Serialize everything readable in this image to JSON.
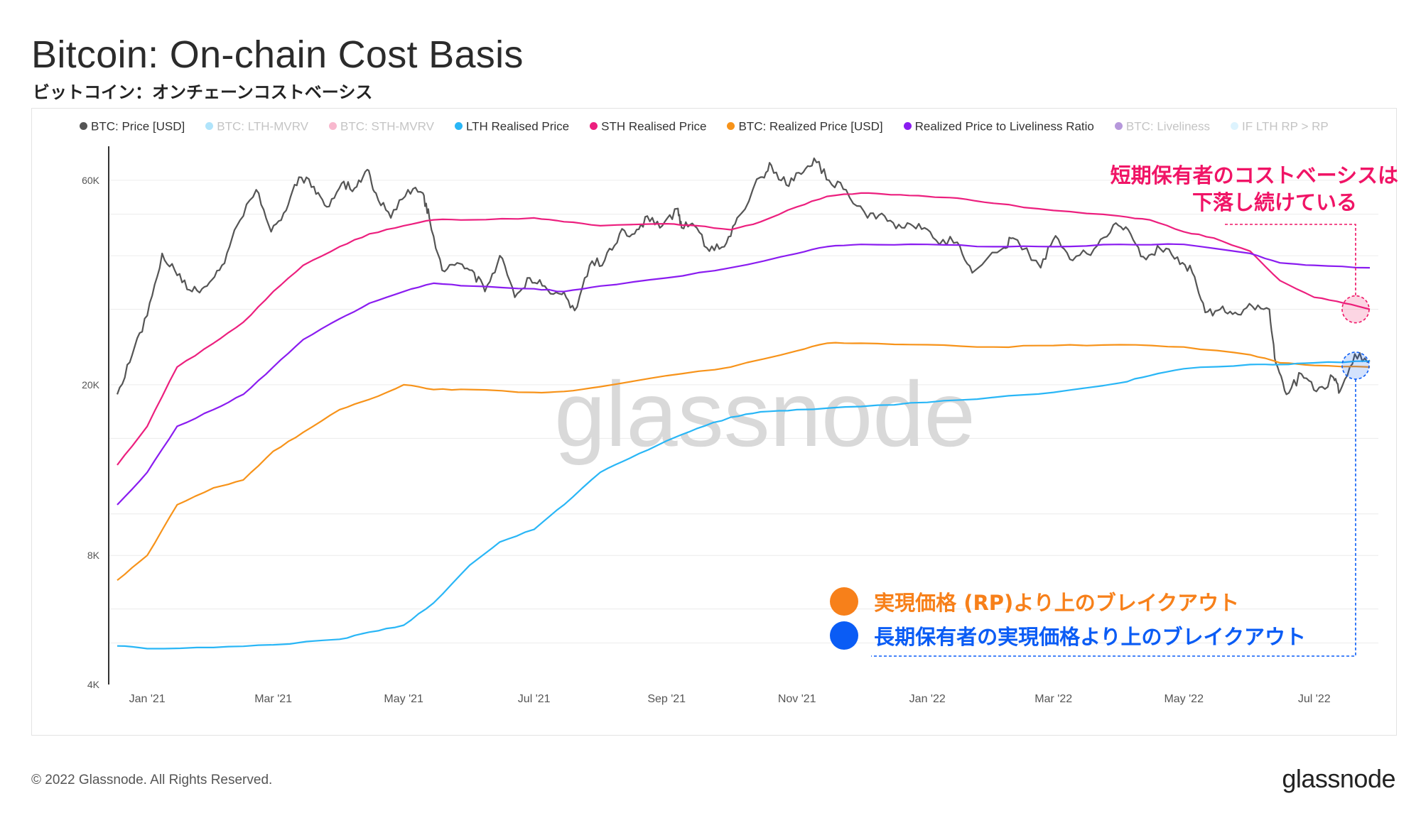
{
  "title": "Bitcoin: On-chain Cost Basis",
  "subtitle": "ビットコイン：オンチェーンコストベーシス",
  "legend": [
    {
      "label": "BTC: Price [USD]",
      "color": "#555555",
      "active": true
    },
    {
      "label": "BTC: LTH-MVRV",
      "color": "#4fc3f7",
      "active": false
    },
    {
      "label": "BTC: STH-MVRV",
      "color": "#f06292",
      "active": false
    },
    {
      "label": "LTH Realised Price",
      "color": "#29b6f6",
      "active": true
    },
    {
      "label": "STH Realised Price",
      "color": "#ec1f7e",
      "active": true
    },
    {
      "label": "BTC: Realized Price [USD]",
      "color": "#f7931a",
      "active": true
    },
    {
      "label": "Realized Price to Liveliness Ratio",
      "color": "#8a1cf0",
      "active": true
    },
    {
      "label": "BTC: Liveliness",
      "color": "#5e1bb0",
      "active": false
    },
    {
      "label": "IF LTH RP > RP",
      "color": "#b3e5fc",
      "active": false
    }
  ],
  "annotations": {
    "sth_note_line1": "短期保有者のコストベーシスは",
    "sth_note_line2": "下落し続けている",
    "rp_breakout": "実現価格 (RP)より上のブレイクアウト",
    "lth_breakout": "長期保有者の実現価格より上のブレイクアウト",
    "colors": {
      "sth": "#f01466",
      "rp": "#f7801a",
      "lth": "#0a5cf5"
    }
  },
  "watermark": "glassnode",
  "footer": {
    "copyright": "© 2022 Glassnode. All Rights Reserved.",
    "brand": "glassnode"
  },
  "chart_data": {
    "type": "line",
    "yscale": "log",
    "ylim": [
      4000,
      72000
    ],
    "yticks": [
      {
        "value": 4000,
        "label": "4K"
      },
      {
        "value": 8000,
        "label": "8K"
      },
      {
        "value": 20000,
        "label": "20K"
      },
      {
        "value": 60000,
        "label": "60K"
      }
    ],
    "xlim": [
      "2020-12-14",
      "2022-07-31"
    ],
    "xticks": [
      {
        "date": "2021-01-01",
        "label": "Jan '21"
      },
      {
        "date": "2021-03-01",
        "label": "Mar '21"
      },
      {
        "date": "2021-05-01",
        "label": "May '21"
      },
      {
        "date": "2021-07-01",
        "label": "Jul '21"
      },
      {
        "date": "2021-09-01",
        "label": "Sep '21"
      },
      {
        "date": "2021-11-01",
        "label": "Nov '21"
      },
      {
        "date": "2022-01-01",
        "label": "Jan '22"
      },
      {
        "date": "2022-03-01",
        "label": "Mar '22"
      },
      {
        "date": "2022-05-01",
        "label": "May '22"
      },
      {
        "date": "2022-07-01",
        "label": "Jul '22"
      }
    ],
    "grid": true,
    "legend_position": "top",
    "series": [
      {
        "name": "BTC: Price [USD]",
        "color": "#555555",
        "width": 2.2,
        "points": [
          [
            "2020-12-18",
            19000
          ],
          [
            "2020-12-25",
            23500
          ],
          [
            "2021-01-01",
            29000
          ],
          [
            "2021-01-08",
            40500
          ],
          [
            "2021-01-15",
            36000
          ],
          [
            "2021-01-22",
            33000
          ],
          [
            "2021-01-29",
            34000
          ],
          [
            "2021-02-05",
            38000
          ],
          [
            "2021-02-12",
            47000
          ],
          [
            "2021-02-21",
            57000
          ],
          [
            "2021-02-28",
            45500
          ],
          [
            "2021-03-07",
            51000
          ],
          [
            "2021-03-13",
            61000
          ],
          [
            "2021-03-20",
            58000
          ],
          [
            "2021-03-26",
            52000
          ],
          [
            "2021-04-02",
            59000
          ],
          [
            "2021-04-08",
            57500
          ],
          [
            "2021-04-14",
            63500
          ],
          [
            "2021-04-18",
            56000
          ],
          [
            "2021-04-25",
            49000
          ],
          [
            "2021-05-03",
            57000
          ],
          [
            "2021-05-10",
            56000
          ],
          [
            "2021-05-13",
            49000
          ],
          [
            "2021-05-19",
            37000
          ],
          [
            "2021-05-26",
            38500
          ],
          [
            "2021-06-02",
            37000
          ],
          [
            "2021-06-08",
            33000
          ],
          [
            "2021-06-15",
            40000
          ],
          [
            "2021-06-22",
            32000
          ],
          [
            "2021-06-29",
            35500
          ],
          [
            "2021-07-06",
            34000
          ],
          [
            "2021-07-14",
            32500
          ],
          [
            "2021-07-20",
            29800
          ],
          [
            "2021-07-27",
            38000
          ],
          [
            "2021-08-03",
            39000
          ],
          [
            "2021-08-10",
            45000
          ],
          [
            "2021-08-17",
            45000
          ],
          [
            "2021-08-23",
            49500
          ],
          [
            "2021-08-30",
            47000
          ],
          [
            "2021-09-06",
            51500
          ],
          [
            "2021-09-08",
            46500
          ],
          [
            "2021-09-14",
            47000
          ],
          [
            "2021-09-21",
            41000
          ],
          [
            "2021-09-28",
            42000
          ],
          [
            "2021-10-04",
            49000
          ],
          [
            "2021-10-15",
            61000
          ],
          [
            "2021-10-20",
            65000
          ],
          [
            "2021-10-27",
            58500
          ],
          [
            "2021-11-03",
            62000
          ],
          [
            "2021-11-09",
            67500
          ],
          [
            "2021-11-16",
            60000
          ],
          [
            "2021-11-24",
            57000
          ],
          [
            "2021-12-04",
            49000
          ],
          [
            "2021-12-12",
            49500
          ],
          [
            "2021-12-20",
            46500
          ],
          [
            "2021-12-28",
            47500
          ],
          [
            "2022-01-05",
            43500
          ],
          [
            "2022-01-15",
            43000
          ],
          [
            "2022-01-22",
            36500
          ],
          [
            "2022-02-05",
            41500
          ],
          [
            "2022-02-10",
            44000
          ],
          [
            "2022-02-23",
            37500
          ],
          [
            "2022-03-02",
            44500
          ],
          [
            "2022-03-10",
            39000
          ],
          [
            "2022-03-20",
            41500
          ],
          [
            "2022-03-29",
            47200
          ],
          [
            "2022-04-05",
            46000
          ],
          [
            "2022-04-12",
            39800
          ],
          [
            "2022-04-20",
            41500
          ],
          [
            "2022-04-28",
            39700
          ],
          [
            "2022-05-05",
            36500
          ],
          [
            "2022-05-11",
            29500
          ],
          [
            "2022-05-18",
            30000
          ],
          [
            "2022-05-25",
            29500
          ],
          [
            "2022-06-02",
            30500
          ],
          [
            "2022-06-10",
            30000
          ],
          [
            "2022-06-13",
            22500
          ],
          [
            "2022-06-18",
            19000
          ],
          [
            "2022-06-25",
            21200
          ],
          [
            "2022-07-02",
            19300
          ],
          [
            "2022-07-10",
            20800
          ],
          [
            "2022-07-13",
            19300
          ],
          [
            "2022-07-20",
            23600
          ],
          [
            "2022-07-27",
            22800
          ]
        ]
      },
      {
        "name": "STH Realised Price",
        "color": "#ec1f7e",
        "width": 2.2,
        "points": [
          [
            "2020-12-18",
            13000
          ],
          [
            "2021-01-01",
            16000
          ],
          [
            "2021-01-15",
            22000
          ],
          [
            "2021-02-01",
            25000
          ],
          [
            "2021-02-15",
            28000
          ],
          [
            "2021-03-01",
            33000
          ],
          [
            "2021-03-15",
            38000
          ],
          [
            "2021-04-01",
            42000
          ],
          [
            "2021-04-15",
            45000
          ],
          [
            "2021-05-01",
            47000
          ],
          [
            "2021-05-15",
            48500
          ],
          [
            "2021-06-01",
            48500
          ],
          [
            "2021-07-01",
            49000
          ],
          [
            "2021-07-15",
            48000
          ],
          [
            "2021-08-01",
            47000
          ],
          [
            "2021-09-01",
            47500
          ],
          [
            "2021-09-15",
            47000
          ],
          [
            "2021-10-01",
            46000
          ],
          [
            "2021-10-15",
            48000
          ],
          [
            "2021-11-01",
            52000
          ],
          [
            "2021-11-15",
            55000
          ],
          [
            "2021-12-01",
            56000
          ],
          [
            "2021-12-15",
            55500
          ],
          [
            "2022-01-01",
            55000
          ],
          [
            "2022-01-15",
            54500
          ],
          [
            "2022-02-01",
            53000
          ],
          [
            "2022-03-01",
            51000
          ],
          [
            "2022-04-01",
            49500
          ],
          [
            "2022-04-15",
            48500
          ],
          [
            "2022-05-01",
            45500
          ],
          [
            "2022-05-15",
            44000
          ],
          [
            "2022-06-01",
            41000
          ],
          [
            "2022-06-15",
            35000
          ],
          [
            "2022-07-01",
            32000
          ],
          [
            "2022-07-15",
            31000
          ],
          [
            "2022-07-27",
            30000
          ]
        ]
      },
      {
        "name": "Realized Price to Liveliness Ratio",
        "color": "#8a1cf0",
        "width": 2.2,
        "points": [
          [
            "2020-12-18",
            10500
          ],
          [
            "2021-01-01",
            12500
          ],
          [
            "2021-01-15",
            16000
          ],
          [
            "2021-02-01",
            17500
          ],
          [
            "2021-02-15",
            19000
          ],
          [
            "2021-03-01",
            22000
          ],
          [
            "2021-03-15",
            25500
          ],
          [
            "2021-04-01",
            28500
          ],
          [
            "2021-04-15",
            31000
          ],
          [
            "2021-05-01",
            33000
          ],
          [
            "2021-05-15",
            34500
          ],
          [
            "2021-06-01",
            34000
          ],
          [
            "2021-07-01",
            33500
          ],
          [
            "2021-07-15",
            33000
          ],
          [
            "2021-08-01",
            34000
          ],
          [
            "2021-09-01",
            35500
          ],
          [
            "2021-10-01",
            37500
          ],
          [
            "2021-11-01",
            40500
          ],
          [
            "2021-11-15",
            42000
          ],
          [
            "2021-12-01",
            42500
          ],
          [
            "2022-01-01",
            42500
          ],
          [
            "2022-02-01",
            42000
          ],
          [
            "2022-03-01",
            42000
          ],
          [
            "2022-04-01",
            42500
          ],
          [
            "2022-05-01",
            42500
          ],
          [
            "2022-06-01",
            40500
          ],
          [
            "2022-06-15",
            38500
          ],
          [
            "2022-07-01",
            38000
          ],
          [
            "2022-07-27",
            37500
          ]
        ]
      },
      {
        "name": "BTC: Realized Price [USD]",
        "color": "#f7931a",
        "width": 2.2,
        "points": [
          [
            "2020-12-18",
            7000
          ],
          [
            "2021-01-01",
            8000
          ],
          [
            "2021-01-15",
            10500
          ],
          [
            "2021-02-01",
            11500
          ],
          [
            "2021-02-15",
            12000
          ],
          [
            "2021-03-01",
            14000
          ],
          [
            "2021-03-15",
            15500
          ],
          [
            "2021-04-01",
            17500
          ],
          [
            "2021-04-15",
            18500
          ],
          [
            "2021-05-01",
            20000
          ],
          [
            "2021-05-15",
            19500
          ],
          [
            "2021-06-01",
            19500
          ],
          [
            "2021-07-01",
            19200
          ],
          [
            "2021-07-15",
            19300
          ],
          [
            "2021-08-01",
            19800
          ],
          [
            "2021-09-01",
            21000
          ],
          [
            "2021-10-01",
            22000
          ],
          [
            "2021-11-01",
            24000
          ],
          [
            "2021-11-15",
            25000
          ],
          [
            "2021-12-01",
            25000
          ],
          [
            "2022-01-01",
            24800
          ],
          [
            "2022-02-01",
            24500
          ],
          [
            "2022-03-01",
            24700
          ],
          [
            "2022-04-01",
            24800
          ],
          [
            "2022-05-01",
            24500
          ],
          [
            "2022-06-01",
            23500
          ],
          [
            "2022-06-15",
            22500
          ],
          [
            "2022-07-01",
            22200
          ],
          [
            "2022-07-27",
            22000
          ]
        ]
      },
      {
        "name": "LTH Realised Price",
        "color": "#29b6f6",
        "width": 2.2,
        "points": [
          [
            "2020-12-18",
            4920
          ],
          [
            "2021-01-01",
            4850
          ],
          [
            "2021-02-01",
            4880
          ],
          [
            "2021-03-01",
            4950
          ],
          [
            "2021-04-01",
            5100
          ],
          [
            "2021-04-15",
            5300
          ],
          [
            "2021-05-01",
            5500
          ],
          [
            "2021-05-15",
            6200
          ],
          [
            "2021-06-01",
            7600
          ],
          [
            "2021-06-15",
            8600
          ],
          [
            "2021-07-01",
            9200
          ],
          [
            "2021-07-15",
            10500
          ],
          [
            "2021-08-01",
            12500
          ],
          [
            "2021-08-15",
            13500
          ],
          [
            "2021-09-01",
            14800
          ],
          [
            "2021-09-15",
            15800
          ],
          [
            "2021-10-01",
            16800
          ],
          [
            "2021-10-15",
            17300
          ],
          [
            "2021-11-01",
            17500
          ],
          [
            "2021-12-01",
            17800
          ],
          [
            "2022-01-01",
            18200
          ],
          [
            "2022-02-01",
            18700
          ],
          [
            "2022-03-01",
            19200
          ],
          [
            "2022-04-01",
            20200
          ],
          [
            "2022-04-15",
            21000
          ],
          [
            "2022-05-01",
            21800
          ],
          [
            "2022-06-01",
            22300
          ],
          [
            "2022-06-15",
            22300
          ],
          [
            "2022-07-01",
            22500
          ],
          [
            "2022-07-27",
            22700
          ]
        ]
      }
    ]
  }
}
